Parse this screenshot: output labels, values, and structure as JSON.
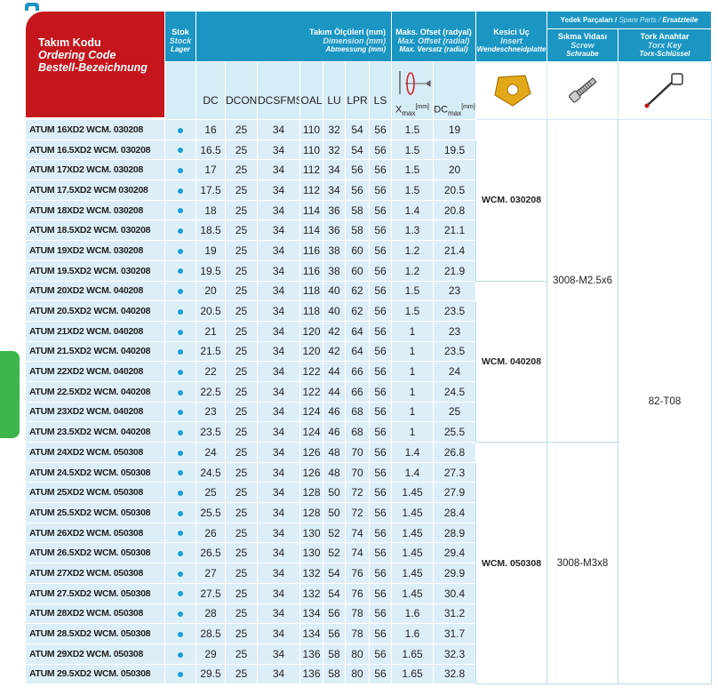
{
  "header": {
    "code": {
      "tr": "Takım Kodu",
      "en": "Ordering Code",
      "de": "Bestell-Bezeichnung"
    },
    "stock": {
      "tr": "Stok",
      "en": "Stock",
      "de": "Lager"
    },
    "dimension": {
      "tr": "Takım Ölçüleri (mm)",
      "en": "Dimension (mm)",
      "de": "Abmessung (mm)"
    },
    "offset": {
      "tr": "Maks. Ofset (radyal)",
      "en": "Max. Offset (radial)",
      "de": "Max. Versatz (radial)"
    },
    "insert": {
      "tr": "Kesici Uç",
      "en": "Insert",
      "de": "Wendeschneidplatte"
    },
    "spare": {
      "tr": "Yedek Parçaları /",
      "en": "Spare Parts /",
      "de": "Ersatzteile"
    },
    "screw": {
      "tr": "Sıkma Vidası",
      "en": "Screw",
      "de": "Schraube"
    },
    "key": {
      "tr": "Tork Anahtar",
      "en": "Torx Key",
      "de": "Torx-Schlüssel"
    }
  },
  "columns": {
    "dims": [
      "DC",
      "DCON",
      "DCSFMS",
      "OAL",
      "LU",
      "LPR",
      "LS"
    ],
    "x": {
      "main": "X",
      "sub": "max",
      "unit": "[mm]"
    },
    "dc": {
      "main": "DC",
      "sub": "max",
      "unit": "[mm]"
    }
  },
  "torx_key": "82-T08",
  "screw_groups": [
    {
      "screw": "3008-M2.5x6",
      "insert_groups": [
        {
          "insert": "WCM. 030208",
          "rows": [
            {
              "code": "ATUM 16XD2 WCM. 030208",
              "dims": [
                16,
                25,
                34,
                110,
                32,
                54,
                56
              ],
              "x": 1.5,
              "dc": 19
            },
            {
              "code": "ATUM 16.5XD2 WCM. 030208",
              "dims": [
                16.5,
                25,
                34,
                110,
                32,
                54,
                56
              ],
              "x": 1.5,
              "dc": 19.5
            },
            {
              "code": "ATUM 17XD2 WCM. 030208",
              "dims": [
                17,
                25,
                34,
                112,
                34,
                56,
                56
              ],
              "x": 1.5,
              "dc": 20
            },
            {
              "code": "ATUM 17.5XD2 WCM 030208",
              "dims": [
                17.5,
                25,
                34,
                112,
                34,
                56,
                56
              ],
              "x": 1.5,
              "dc": 20.5
            },
            {
              "code": "ATUM 18XD2 WCM. 030208",
              "dims": [
                18,
                25,
                34,
                114,
                36,
                58,
                56
              ],
              "x": 1.4,
              "dc": 20.8
            },
            {
              "code": "ATUM 18.5XD2 WCM. 030208",
              "dims": [
                18.5,
                25,
                34,
                114,
                36,
                58,
                56
              ],
              "x": 1.3,
              "dc": 21.1
            },
            {
              "code": "ATUM 19XD2 WCM. 030208",
              "dims": [
                19,
                25,
                34,
                116,
                38,
                60,
                56
              ],
              "x": 1.2,
              "dc": 21.4
            },
            {
              "code": "ATUM 19.5XD2 WCM. 030208",
              "dims": [
                19.5,
                25,
                34,
                116,
                38,
                60,
                56
              ],
              "x": 1.2,
              "dc": 21.9
            }
          ]
        },
        {
          "insert": "WCM. 040208",
          "rows": [
            {
              "code": "ATUM 20XD2 WCM. 040208",
              "dims": [
                20,
                25,
                34,
                118,
                40,
                62,
                56
              ],
              "x": 1.5,
              "dc": 23
            },
            {
              "code": "ATUM 20.5XD2 WCM. 040208",
              "dims": [
                20.5,
                25,
                34,
                118,
                40,
                62,
                56
              ],
              "x": 1.5,
              "dc": 23.5
            },
            {
              "code": "ATUM 21XD2 WCM. 040208",
              "dims": [
                21,
                25,
                34,
                120,
                42,
                64,
                56
              ],
              "x": 1,
              "dc": 23
            },
            {
              "code": "ATUM 21.5XD2 WCM. 040208",
              "dims": [
                21.5,
                25,
                34,
                120,
                42,
                64,
                56
              ],
              "x": 1,
              "dc": 23.5
            },
            {
              "code": "ATUM 22XD2 WCM. 040208",
              "dims": [
                22,
                25,
                34,
                122,
                44,
                66,
                56
              ],
              "x": 1,
              "dc": 24
            },
            {
              "code": "ATUM 22.5XD2 WCM. 040208",
              "dims": [
                22.5,
                25,
                34,
                122,
                44,
                66,
                56
              ],
              "x": 1,
              "dc": 24.5
            },
            {
              "code": "ATUM 23XD2 WCM. 040208",
              "dims": [
                23,
                25,
                34,
                124,
                46,
                68,
                56
              ],
              "x": 1,
              "dc": 25
            },
            {
              "code": "ATUM 23.5XD2 WCM. 040208",
              "dims": [
                23.5,
                25,
                34,
                124,
                46,
                68,
                56
              ],
              "x": 1,
              "dc": 25.5
            }
          ]
        }
      ]
    },
    {
      "screw": "3008-M3x8",
      "insert_groups": [
        {
          "insert": "WCM. 050308",
          "rows": [
            {
              "code": "ATUM 24XD2 WCM. 050308",
              "dims": [
                24,
                25,
                34,
                126,
                48,
                70,
                56
              ],
              "x": 1.4,
              "dc": 26.8
            },
            {
              "code": "ATUM 24.5XD2 WCM. 050308",
              "dims": [
                24.5,
                25,
                34,
                126,
                48,
                70,
                56
              ],
              "x": 1.4,
              "dc": 27.3
            },
            {
              "code": "ATUM 25XD2 WCM. 050308",
              "dims": [
                25,
                25,
                34,
                128,
                50,
                72,
                56
              ],
              "x": 1.45,
              "dc": 27.9
            },
            {
              "code": "ATUM 25.5XD2 WCM. 050308",
              "dims": [
                25.5,
                25,
                34,
                128,
                50,
                72,
                56
              ],
              "x": 1.45,
              "dc": 28.4
            },
            {
              "code": "ATUM 26XD2 WCM. 050308",
              "dims": [
                26,
                25,
                34,
                130,
                52,
                74,
                56
              ],
              "x": 1.45,
              "dc": 28.9
            },
            {
              "code": "ATUM 26.5XD2 WCM. 050308",
              "dims": [
                26.5,
                25,
                34,
                130,
                52,
                74,
                56
              ],
              "x": 1.45,
              "dc": 29.4
            },
            {
              "code": "ATUM 27XD2 WCM. 050308",
              "dims": [
                27,
                25,
                34,
                132,
                54,
                76,
                56
              ],
              "x": 1.45,
              "dc": 29.9
            },
            {
              "code": "ATUM 27.5XD2 WCM. 050308",
              "dims": [
                27.5,
                25,
                34,
                132,
                54,
                76,
                56
              ],
              "x": 1.45,
              "dc": 30.4
            },
            {
              "code": "ATUM 28XD2 WCM. 050308",
              "dims": [
                28,
                25,
                34,
                134,
                56,
                78,
                56
              ],
              "x": 1.6,
              "dc": 31.2
            },
            {
              "code": "ATUM 28.5XD2 WCM. 050308",
              "dims": [
                28.5,
                25,
                34,
                134,
                56,
                78,
                56
              ],
              "x": 1.6,
              "dc": 31.7
            },
            {
              "code": "ATUM 29XD2 WCM. 050308",
              "dims": [
                29,
                25,
                34,
                136,
                58,
                80,
                56
              ],
              "x": 1.65,
              "dc": 32.3
            },
            {
              "code": "ATUM 29.5XD2 WCM. 050308",
              "dims": [
                29.5,
                25,
                34,
                136,
                58,
                80,
                56
              ],
              "x": 1.65,
              "dc": 32.8
            }
          ]
        }
      ]
    }
  ]
}
